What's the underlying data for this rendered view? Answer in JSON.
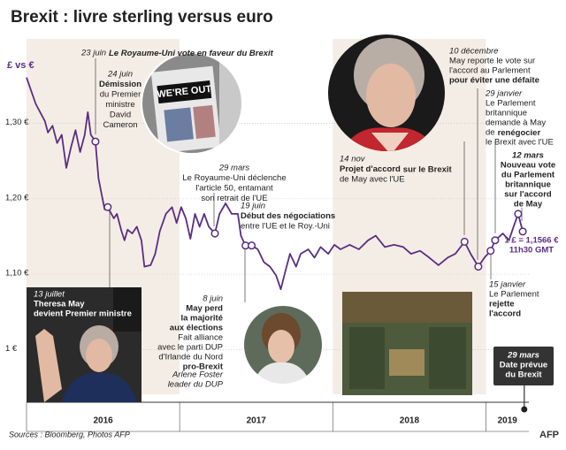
{
  "chart_data": {
    "type": "line",
    "title": "Brexit : livre sterling versus euro",
    "y_axis_label": "£ vs €",
    "source": "Sources : Bloomberg, Photos AFP",
    "logo": "AFP",
    "photo_text": "WE'RE OUT",
    "color": "#5b2d82",
    "xlim": [
      2016,
      2019.28
    ],
    "xticks": [
      2016,
      2017,
      2018,
      2019
    ],
    "ylim": [
      0.93,
      1.37
    ],
    "yticks": [
      {
        "value": 1,
        "label": "1 €"
      },
      {
        "value": 1.1,
        "label": "1,10 €"
      },
      {
        "value": 1.2,
        "label": "1,20 €"
      },
      {
        "value": 1.3,
        "label": "1,30 €"
      }
    ],
    "grid": true,
    "x": [
      2016.0,
      2016.06,
      2016.12,
      2016.14,
      2016.17,
      2016.2,
      2016.23,
      2016.26,
      2016.29,
      2016.32,
      2016.35,
      2016.38,
      2016.4,
      2016.42,
      2016.45,
      2016.47,
      2016.51,
      2016.53,
      2016.57,
      2016.59,
      2016.62,
      2016.64,
      2016.66,
      2016.69,
      2016.72,
      2016.75,
      2016.77,
      2016.81,
      2016.84,
      2016.87,
      2016.91,
      2016.95,
      2016.98,
      2017.01,
      2017.04,
      2017.07,
      2017.1,
      2017.13,
      2017.16,
      2017.19,
      2017.23,
      2017.26,
      2017.3,
      2017.34,
      2017.38,
      2017.4,
      2017.43,
      2017.47,
      2017.51,
      2017.55,
      2017.59,
      2017.63,
      2017.66,
      2017.69,
      2017.72,
      2017.76,
      2017.79,
      2017.84,
      2017.88,
      2017.92,
      2017.97,
      2018.01,
      2018.05,
      2018.11,
      2018.17,
      2018.23,
      2018.28,
      2018.34,
      2018.4,
      2018.46,
      2018.51,
      2018.57,
      2018.63,
      2018.69,
      2018.75,
      2018.8,
      2018.86,
      2018.9,
      2018.95,
      2018.99,
      2019.03,
      2019.06,
      2019.11,
      2019.15,
      2019.18,
      2019.21,
      2019.24
    ],
    "values": [
      1.361,
      1.326,
      1.303,
      1.288,
      1.297,
      1.274,
      1.285,
      1.241,
      1.268,
      1.291,
      1.262,
      1.285,
      1.315,
      1.285,
      1.276,
      1.227,
      1.186,
      1.189,
      1.174,
      1.18,
      1.157,
      1.145,
      1.159,
      1.154,
      1.163,
      1.145,
      1.11,
      1.112,
      1.127,
      1.157,
      1.18,
      1.189,
      1.168,
      1.189,
      1.174,
      1.147,
      1.18,
      1.163,
      1.18,
      1.163,
      1.154,
      1.18,
      1.194,
      1.18,
      1.18,
      1.151,
      1.138,
      1.138,
      1.133,
      1.116,
      1.11,
      1.098,
      1.08,
      1.104,
      1.127,
      1.11,
      1.127,
      1.133,
      1.122,
      1.136,
      1.127,
      1.139,
      1.133,
      1.139,
      1.133,
      1.145,
      1.151,
      1.136,
      1.139,
      1.136,
      1.127,
      1.131,
      1.122,
      1.112,
      1.122,
      1.127,
      1.143,
      1.127,
      1.11,
      1.122,
      1.131,
      1.145,
      1.154,
      1.145,
      1.163,
      1.18,
      1.1566
    ],
    "events": [
      {
        "x": 2016.45,
        "y": 1.276
      },
      {
        "x": 2016.53,
        "y": 1.189
      },
      {
        "x": 2017.23,
        "y": 1.154
      },
      {
        "x": 2017.43,
        "y": 1.138
      },
      {
        "x": 2017.47,
        "y": 1.138
      },
      {
        "x": 2018.86,
        "y": 1.143
      },
      {
        "x": 2018.95,
        "y": 1.11
      },
      {
        "x": 2019.03,
        "y": 1.131
      },
      {
        "x": 2019.06,
        "y": 1.145
      },
      {
        "x": 2019.21,
        "y": 1.18
      },
      {
        "x": 2019.24,
        "y": 1.1566
      }
    ],
    "brexit_date_x": 2019.25,
    "annotations": [
      {
        "lines": [
          "23 juin",
          "Le Royaume-Uni vote en faveur du Brexit"
        ]
      },
      {
        "lines": [
          "24 juin",
          "Démission",
          "du Premier",
          "ministre",
          "David",
          "Cameron"
        ]
      },
      {
        "lines": [
          "13 juillet",
          "Theresa May",
          "devient Premier ministre"
        ]
      },
      {
        "lines": [
          "29 mars",
          "Le Royaume-Uni déclenche",
          "l'article 50, entamant",
          "son retrait de l'UE"
        ]
      },
      {
        "lines": [
          "19 juin",
          "Début des négociations",
          "entre l'UE et le Roy.-Uni"
        ]
      },
      {
        "lines": [
          "8 juin",
          "May perd",
          "la majorité",
          "aux élections",
          "Fait alliance",
          "avec le parti DUP",
          "d'Irlande du Nord",
          "pro-Brexit"
        ]
      },
      {
        "lines": [
          "Arlene Foster",
          "leader du DUP"
        ]
      },
      {
        "lines": [
          "14 nov",
          "Projet d'accord",
          "sur le Brexit",
          "de May avec l'UE"
        ]
      },
      {
        "lines": [
          "10 décembre",
          "May reporte le vote sur",
          "l'accord au Parlement",
          "pour éviter une défaite"
        ]
      },
      {
        "lines": [
          "29 janvier",
          "Le Parlement",
          "britannique",
          "demande à May",
          "de",
          "renégocier",
          "le Brexit avec l'UE"
        ]
      },
      {
        "lines": [
          "12 mars",
          "Nouveau vote",
          "du Parlement",
          "britannique",
          "sur l'accord",
          "de May"
        ]
      },
      {
        "lines": [
          "1 £ = 1,1566 €",
          "11h30 GMT"
        ]
      },
      {
        "lines": [
          "15 janvier",
          "Le Parlement",
          "rejette",
          "l'accord"
        ]
      },
      {
        "lines": [
          "29 mars",
          "Date prévue",
          "du Brexit"
        ]
      }
    ]
  }
}
